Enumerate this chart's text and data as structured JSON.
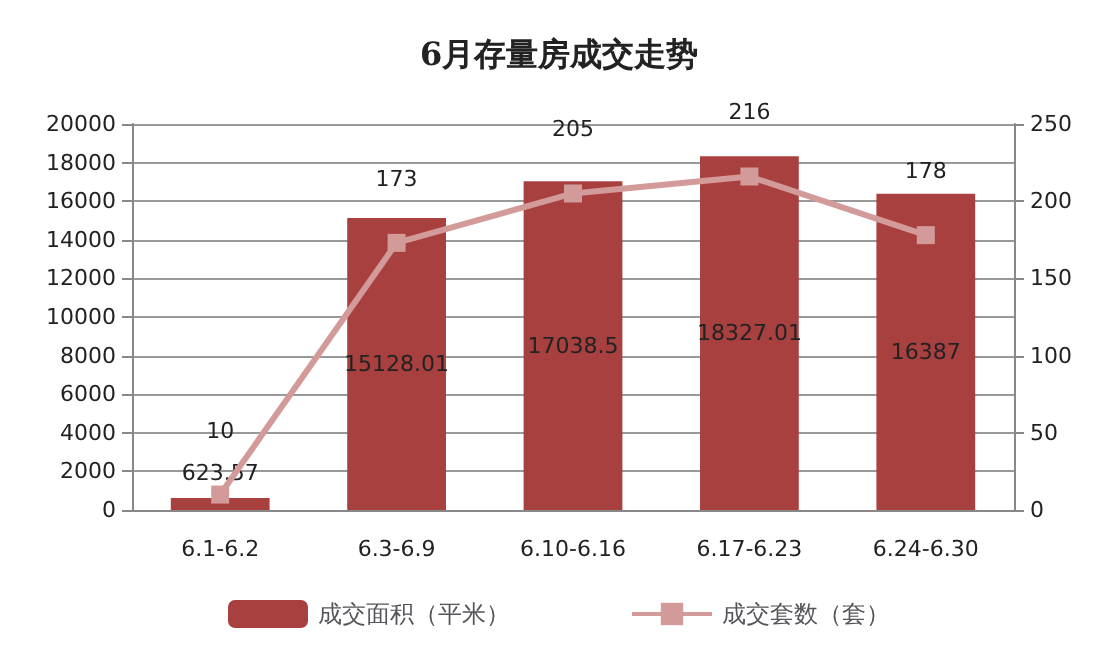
{
  "chart_data": {
    "type": "bar",
    "title": "6月存量房成交走势",
    "categories": [
      "6.1-6.2",
      "6.3-6.9",
      "6.10-6.16",
      "6.17-6.23",
      "6.24-6.30"
    ],
    "series": [
      {
        "name": "成交面积（平米）",
        "color": "#a94040",
        "values": [
          623.57,
          15128.01,
          17038.5,
          18327.01,
          16387
        ]
      },
      {
        "name": "成交套数（套）",
        "type": "line",
        "axis": "y2",
        "color": "#d39a9a",
        "marker": "square",
        "values": [
          10,
          173,
          205,
          216,
          178
        ]
      }
    ],
    "ylim": [
      0,
      20000
    ],
    "yticks": [
      0,
      2000,
      4000,
      6000,
      8000,
      10000,
      12000,
      14000,
      16000,
      18000,
      20000
    ],
    "y2lim": [
      0,
      250
    ],
    "y2ticks": [
      0,
      50,
      100,
      150,
      200,
      250
    ],
    "grid": "y",
    "legend": "bottom",
    "data_labels": true
  }
}
